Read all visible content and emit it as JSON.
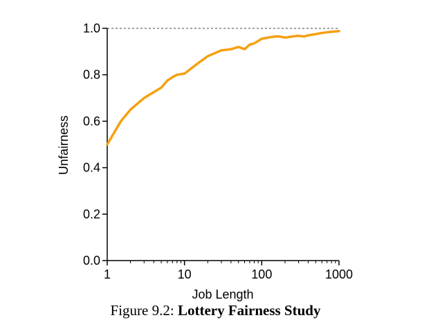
{
  "chart_data": {
    "type": "line",
    "xlabel": "Job Length",
    "ylabel": "Unfairness",
    "xscale": "log",
    "xlim": [
      1,
      1000
    ],
    "ylim": [
      0,
      1.0
    ],
    "x_ticks": [
      "1",
      "10",
      "100",
      "1000"
    ],
    "y_ticks": [
      "0.0",
      "0.2",
      "0.4",
      "0.6",
      "0.8",
      "1.0"
    ],
    "reference_line": {
      "y": 1.0,
      "style": "dashed"
    },
    "grid": false,
    "series": [
      {
        "color": "#f5a00f",
        "x": [
          1,
          1.5,
          2,
          3,
          4,
          5,
          6,
          7,
          8,
          10,
          15,
          20,
          30,
          40,
          50,
          60,
          70,
          80,
          100,
          120,
          150,
          170,
          200,
          250,
          300,
          350,
          400,
          500,
          600,
          700,
          800,
          1000
        ],
        "y": [
          0.5,
          0.6,
          0.65,
          0.7,
          0.725,
          0.745,
          0.775,
          0.79,
          0.8,
          0.805,
          0.85,
          0.88,
          0.905,
          0.91,
          0.92,
          0.91,
          0.93,
          0.935,
          0.955,
          0.96,
          0.965,
          0.965,
          0.96,
          0.965,
          0.968,
          0.965,
          0.97,
          0.975,
          0.98,
          0.983,
          0.985,
          0.988
        ]
      }
    ]
  },
  "caption": {
    "prefix": "Figure 9.2: ",
    "title": "Lottery Fairness Study"
  }
}
